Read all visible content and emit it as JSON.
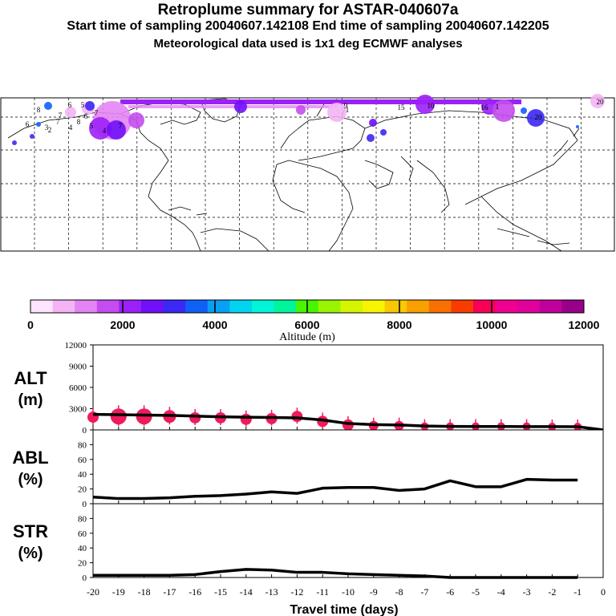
{
  "header": {
    "title": "Retroplume summary for ASTAR-040607a",
    "sampling": "Start time of sampling 20040607.142108     End time of sampling 20040607.142205",
    "met": "Meteorological data used is 1x1 deg ECMWF analyses"
  },
  "colors": {
    "scale": [
      "#ffe4ff",
      "#f4b4f4",
      "#e484f4",
      "#c44cf0",
      "#9c20f8",
      "#7010f8",
      "#3c28f4",
      "#1060f8",
      "#08a0f4",
      "#00d4f0",
      "#00f4d8",
      "#00f49c",
      "#48f400",
      "#98f400",
      "#d4f400",
      "#f8f400",
      "#f8c800",
      "#f8a000",
      "#f87000",
      "#f83c00",
      "#f80058",
      "#f00090",
      "#e0009c",
      "#c0009c",
      "#980088"
    ],
    "alt_dot": "#ee1c5c",
    "map_lines": "#000000"
  },
  "colorbar": {
    "ticks": [
      "0",
      "2000",
      "4000",
      "6000",
      "8000",
      "10000",
      "12000"
    ],
    "label": "Altitude (m)"
  },
  "map_labels": [
    "20",
    "1",
    "9",
    "15",
    "10",
    "16",
    "1",
    "20",
    "7",
    "6",
    "5",
    "8",
    "6",
    "7",
    "6",
    "3",
    "4",
    "5",
    "4",
    "7",
    "2",
    "8",
    "7"
  ],
  "chart_data": [
    {
      "type": "line",
      "panel": "ALT",
      "ylabel": "ALT (m)",
      "ylabel_lines": [
        "ALT",
        "(m)"
      ],
      "ylim": [
        0,
        12000
      ],
      "yticks": [
        "12000",
        "9000",
        "6000",
        "3000",
        "0"
      ],
      "x": [
        -20,
        -19,
        -18,
        -17,
        -16,
        -15,
        -14,
        -13,
        -12,
        -11,
        -10,
        -9,
        -8,
        -7,
        -6,
        -5,
        -4,
        -3,
        -2,
        -1,
        0
      ],
      "values": [
        2200,
        2150,
        2100,
        2050,
        1950,
        1850,
        1800,
        1750,
        1700,
        1400,
        900,
        750,
        700,
        550,
        500,
        480,
        480,
        470,
        460,
        450,
        0
      ],
      "dots": [
        {
          "x": -20,
          "y": 1800,
          "r": 7
        },
        {
          "x": -19,
          "y": 1900,
          "r": 10
        },
        {
          "x": -18,
          "y": 1900,
          "r": 10
        },
        {
          "x": -17,
          "y": 1900,
          "r": 8
        },
        {
          "x": -16,
          "y": 1700,
          "r": 7
        },
        {
          "x": -15,
          "y": 1700,
          "r": 7
        },
        {
          "x": -14,
          "y": 1500,
          "r": 7
        },
        {
          "x": -13,
          "y": 1600,
          "r": 7
        },
        {
          "x": -12,
          "y": 1900,
          "r": 7
        },
        {
          "x": -11,
          "y": 1200,
          "r": 7
        },
        {
          "x": -10,
          "y": 700,
          "r": 7
        },
        {
          "x": -9,
          "y": 600,
          "r": 6
        },
        {
          "x": -8,
          "y": 600,
          "r": 6
        },
        {
          "x": -7,
          "y": 500,
          "r": 5
        },
        {
          "x": -6,
          "y": 500,
          "r": 5
        },
        {
          "x": -5,
          "y": 500,
          "r": 5
        },
        {
          "x": -4,
          "y": 500,
          "r": 5
        },
        {
          "x": -3,
          "y": 500,
          "r": 5
        },
        {
          "x": -2,
          "y": 450,
          "r": 5
        },
        {
          "x": -1,
          "y": 450,
          "r": 5
        }
      ]
    },
    {
      "type": "line",
      "panel": "ABL",
      "ylabel": "ABL (%)",
      "ylabel_lines": [
        "ABL",
        "(%)"
      ],
      "ylim": [
        0,
        100
      ],
      "yticks": [
        "80",
        "60",
        "40",
        "20",
        "0"
      ],
      "x": [
        -20,
        -19,
        -18,
        -17,
        -16,
        -15,
        -14,
        -13,
        -12,
        -11,
        -10,
        -9,
        -8,
        -7,
        -6,
        -5,
        -4,
        -3,
        -2,
        -1
      ],
      "values": [
        9,
        7,
        7,
        8,
        10,
        11,
        13,
        16,
        14,
        21,
        22,
        22,
        18,
        20,
        31,
        23,
        23,
        33,
        32,
        32
      ]
    },
    {
      "type": "line",
      "panel": "STR",
      "ylabel": "STR (%)",
      "ylabel_lines": [
        "STR",
        "(%)"
      ],
      "ylim": [
        0,
        100
      ],
      "yticks": [
        "80",
        "60",
        "40",
        "20",
        "0"
      ],
      "x": [
        -20,
        -19,
        -18,
        -17,
        -16,
        -15,
        -14,
        -13,
        -12,
        -11,
        -10,
        -9,
        -8,
        -7,
        -6,
        -5,
        -4,
        -3,
        -2,
        -1
      ],
      "values": [
        3,
        3,
        3,
        3,
        4,
        8,
        11,
        10,
        7,
        7,
        5,
        4,
        3,
        2,
        0,
        0,
        0,
        0,
        0,
        0
      ],
      "xlabel": "Travel time (days)",
      "xticks": [
        "-20",
        "-19",
        "-18",
        "-17",
        "-16",
        "-15",
        "-14",
        "-13",
        "-12",
        "-11",
        "-10",
        "-9",
        "-8",
        "-7",
        "-6",
        "-5",
        "-4",
        "-3",
        "-2",
        "-1",
        "0"
      ]
    }
  ]
}
